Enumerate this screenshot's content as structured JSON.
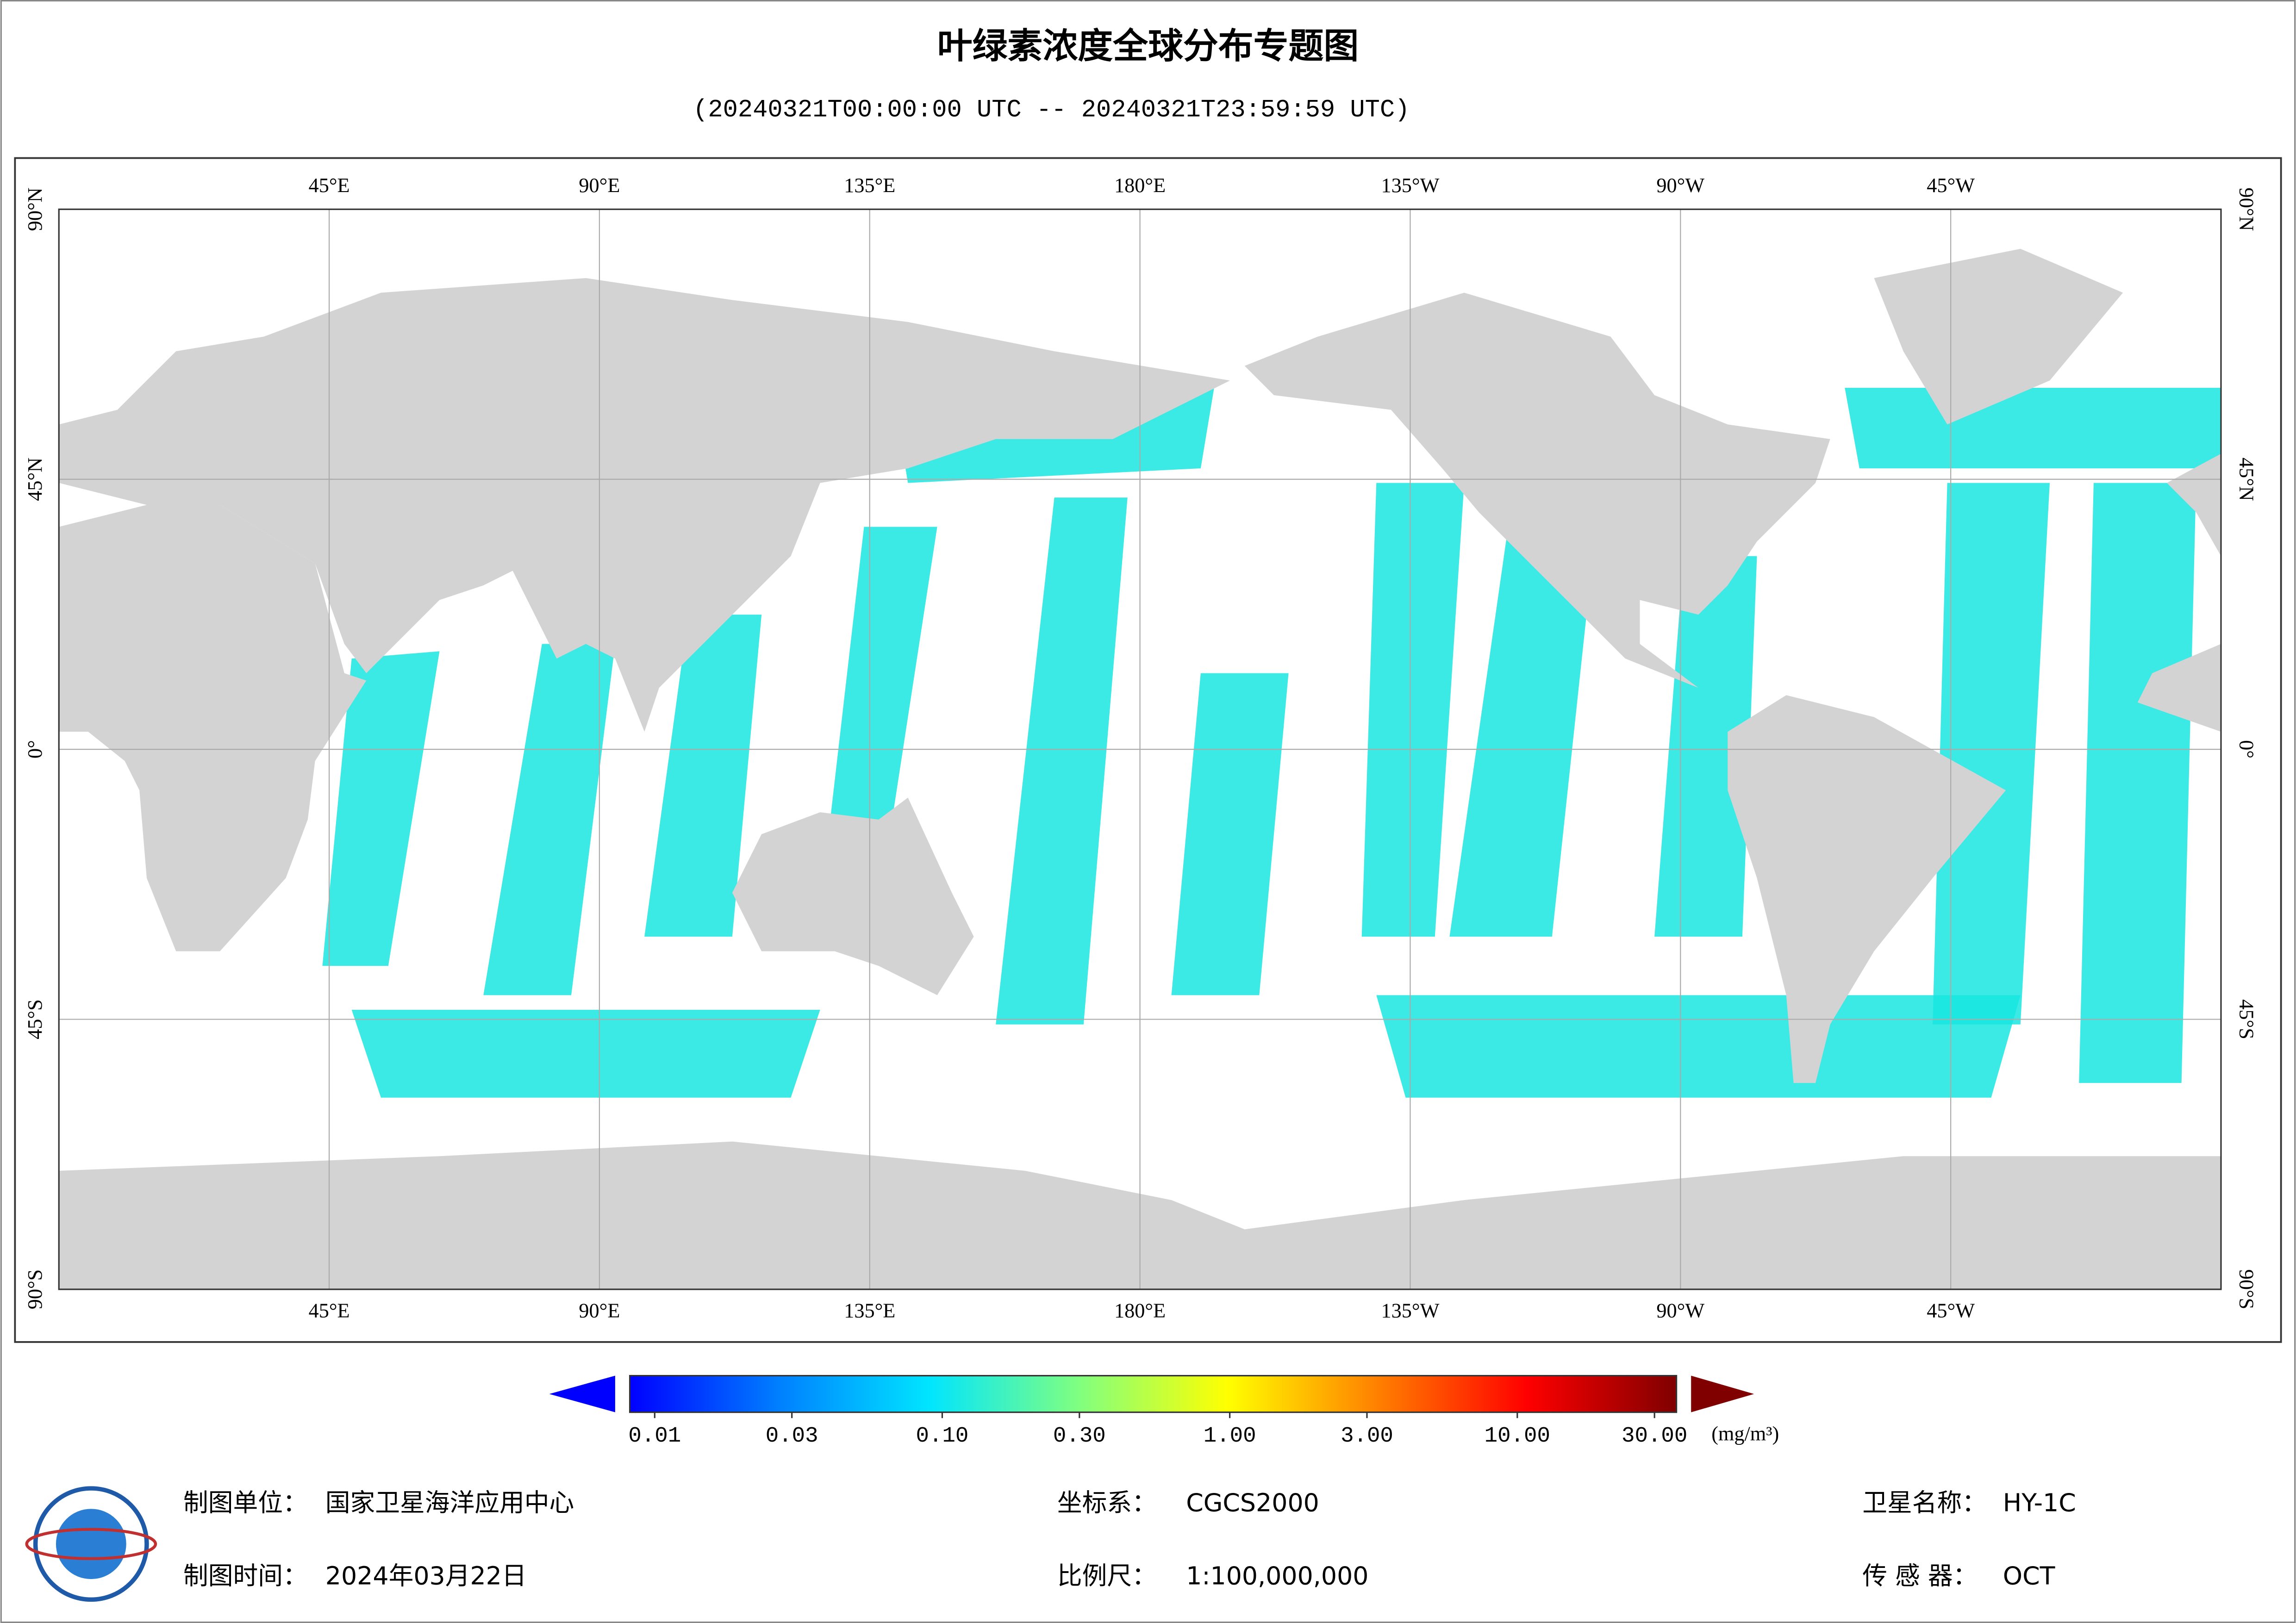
{
  "title": "叶绿素浓度全球分布专题图",
  "subtitle": "(20240321T00:00:00 UTC -- 20240321T23:59:59 UTC)",
  "map": {
    "longitudes": [
      {
        "value": 45,
        "label": "45°E"
      },
      {
        "value": 90,
        "label": "90°E"
      },
      {
        "value": 135,
        "label": "135°E"
      },
      {
        "value": 180,
        "label": "180°E"
      },
      {
        "value": 225,
        "label": "135°W"
      },
      {
        "value": 270,
        "label": "90°W"
      },
      {
        "value": 315,
        "label": "45°W"
      }
    ],
    "latitudes": [
      {
        "value": 90,
        "label": "90°N"
      },
      {
        "value": 45,
        "label": "45°N"
      },
      {
        "value": 0,
        "label": "0°"
      },
      {
        "value": -45,
        "label": "45°S"
      },
      {
        "value": -90,
        "label": "90°S"
      }
    ]
  },
  "colorbar": {
    "log": true,
    "colors": [
      "#0000ff",
      "#0080ff",
      "#00e5ff",
      "#80ff80",
      "#ffff00",
      "#ff8000",
      "#ff0000",
      "#800000"
    ],
    "ticks": [
      {
        "value": 0.01,
        "label": "0.01"
      },
      {
        "value": 0.03,
        "label": "0.03"
      },
      {
        "value": 0.1,
        "label": "0.10"
      },
      {
        "value": 0.3,
        "label": "0.30"
      },
      {
        "value": 1,
        "label": "1.00"
      },
      {
        "value": 3,
        "label": "3.00"
      },
      {
        "value": 10,
        "label": "10.00"
      },
      {
        "value": 30,
        "label": "30.00"
      }
    ],
    "unit": "(mg/m³)"
  },
  "footer": {
    "producer": {
      "label": "制图单位：",
      "value": "国家卫星海洋应用中心"
    },
    "date": {
      "label": "制图时间：",
      "value": "2024年03月22日"
    },
    "crs": {
      "label": "坐标系：",
      "value": "CGCS2000"
    },
    "scale": {
      "label": "比例尺：",
      "value": "1:100,000,000"
    },
    "satellite": {
      "label": "卫星名称：",
      "value": "HY-1C"
    },
    "sensor": {
      "label": "传 感 器：",
      "value": "OCT"
    }
  }
}
